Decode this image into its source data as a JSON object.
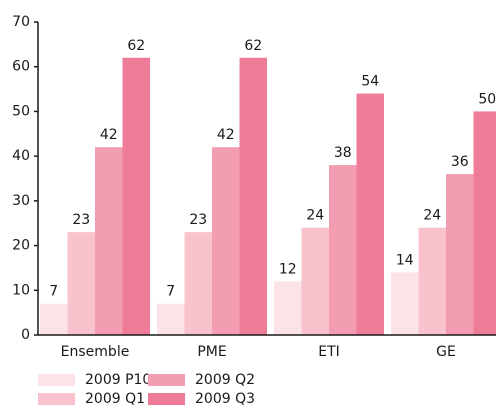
{
  "chart_data": {
    "type": "bar",
    "categories": [
      "Ensemble",
      "PME",
      "ETI",
      "GE"
    ],
    "series": [
      {
        "name": "2009 P10",
        "color": "#fce3e8",
        "values": [
          7,
          7,
          12,
          14
        ]
      },
      {
        "name": "2009 Q1",
        "color": "#f8c3cd",
        "values": [
          23,
          23,
          24,
          24
        ]
      },
      {
        "name": "2009 Q2",
        "color": "#f29db1",
        "values": [
          42,
          42,
          38,
          36
        ]
      },
      {
        "name": "2009 Q3",
        "color": "#ee7b97",
        "values": [
          62,
          62,
          54,
          50
        ]
      }
    ],
    "ylim": [
      0,
      70
    ],
    "yticks": [
      0,
      10,
      20,
      30,
      40,
      50,
      60,
      70
    ],
    "grid": false
  }
}
